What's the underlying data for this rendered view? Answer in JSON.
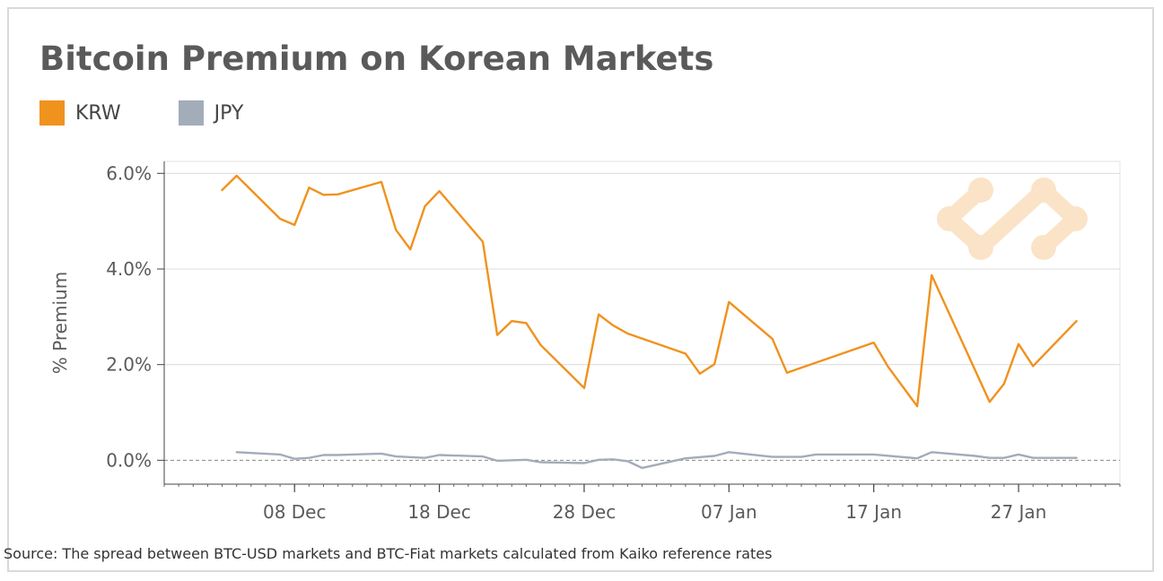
{
  "title": "Bitcoin Premium on Korean Markets",
  "source": "Source: The spread between BTC-USD markets and BTC-Fiat markets calculated from Kaiko reference rates",
  "colors": {
    "krw": "#f0921e",
    "jpy": "#a3acb9",
    "grid": "#dcdcdc",
    "axis": "#444444",
    "text": "#5a5a5a",
    "logo": "#fbe3c7"
  },
  "logo_icon": "kaiko-logo-icon",
  "chart_data": {
    "type": "line",
    "ylabel": "% Premium",
    "ylim": [
      -0.5,
      6.25
    ],
    "yticks": [
      0,
      2,
      4,
      6
    ],
    "ytick_labels": [
      "0.0%",
      "2.0%",
      "4.0%",
      "6.0%"
    ],
    "xlim": [
      "2017-11-29",
      "2018-02-03"
    ],
    "xticks": [
      "2017-12-08",
      "2017-12-18",
      "2017-12-28",
      "2018-01-07",
      "2018-01-17",
      "2018-01-27"
    ],
    "xtick_labels": [
      "08 Dec",
      "18 Dec",
      "28 Dec",
      "07 Jan",
      "17 Jan",
      "27 Jan"
    ],
    "grid": true,
    "legend_position": "top-left",
    "series": [
      {
        "name": "KRW",
        "color": "#f0921e",
        "x": [
          "2017-12-03",
          "2017-12-04",
          "2017-12-07",
          "2017-12-08",
          "2017-12-09",
          "2017-12-10",
          "2017-12-11",
          "2017-12-14",
          "2017-12-15",
          "2017-12-16",
          "2017-12-17",
          "2017-12-18",
          "2017-12-21",
          "2017-12-22",
          "2017-12-23",
          "2017-12-24",
          "2017-12-25",
          "2017-12-28",
          "2017-12-29",
          "2017-12-30",
          "2017-12-31",
          "2018-01-04",
          "2018-01-05",
          "2018-01-06",
          "2018-01-07",
          "2018-01-10",
          "2018-01-11",
          "2018-01-17",
          "2018-01-18",
          "2018-01-20",
          "2018-01-21",
          "2018-01-25",
          "2018-01-26",
          "2018-01-27",
          "2018-01-28",
          "2018-01-31"
        ],
        "values": [
          5.65,
          5.95,
          5.05,
          4.92,
          5.7,
          5.55,
          5.56,
          5.82,
          4.82,
          4.41,
          5.31,
          5.63,
          4.57,
          2.62,
          2.91,
          2.87,
          2.41,
          1.51,
          3.05,
          2.82,
          2.65,
          2.23,
          1.81,
          2.01,
          3.31,
          2.54,
          1.83,
          2.46,
          1.95,
          1.13,
          3.87,
          1.22,
          1.6,
          2.43,
          1.97,
          2.91
        ]
      },
      {
        "name": "JPY",
        "color": "#a3acb9",
        "x": [
          "2017-12-04",
          "2017-12-07",
          "2017-12-08",
          "2017-12-09",
          "2017-12-10",
          "2017-12-11",
          "2017-12-14",
          "2017-12-15",
          "2017-12-17",
          "2017-12-18",
          "2017-12-21",
          "2017-12-22",
          "2017-12-24",
          "2017-12-25",
          "2017-12-28",
          "2017-12-29",
          "2017-12-30",
          "2017-12-31",
          "2018-01-01",
          "2018-01-04",
          "2018-01-06",
          "2018-01-07",
          "2018-01-10",
          "2018-01-12",
          "2018-01-13",
          "2018-01-17",
          "2018-01-20",
          "2018-01-21",
          "2018-01-24",
          "2018-01-25",
          "2018-01-26",
          "2018-01-27",
          "2018-01-28",
          "2018-01-31"
        ],
        "values": [
          0.17,
          0.12,
          0.03,
          0.05,
          0.11,
          0.11,
          0.14,
          0.08,
          0.05,
          0.11,
          0.08,
          -0.01,
          0.01,
          -0.04,
          -0.06,
          0.01,
          0.02,
          -0.02,
          -0.16,
          0.04,
          0.09,
          0.17,
          0.07,
          0.07,
          0.12,
          0.12,
          0.04,
          0.17,
          0.09,
          0.05,
          0.05,
          0.12,
          0.05,
          0.05
        ]
      }
    ]
  }
}
